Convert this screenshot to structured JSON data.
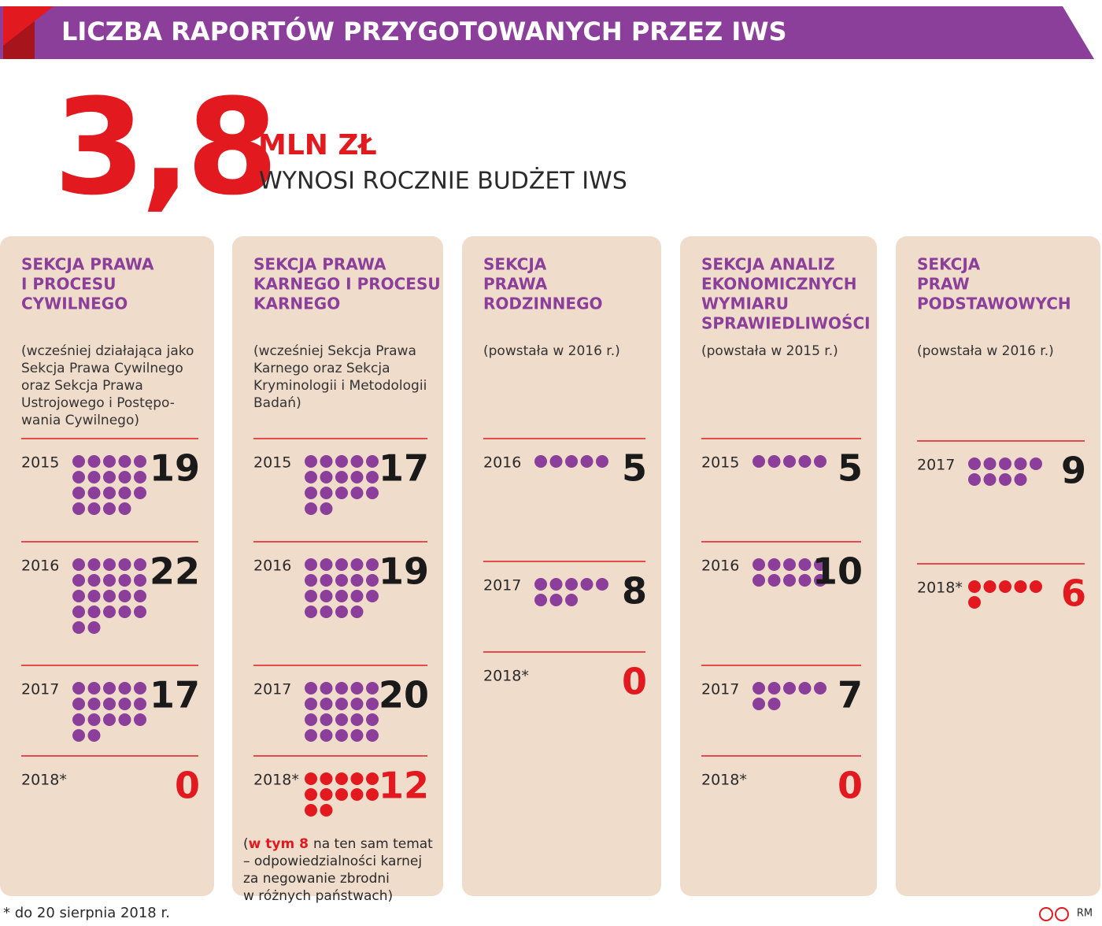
{
  "header": {
    "title": "LICZBA RAPORTÓW PRZYGOTOWANYCH PRZEZ IWS"
  },
  "headline": {
    "value": "3,8",
    "unit": "MLN ZŁ",
    "text": "WYNOSI ROCZNIE BUDŻET IWS"
  },
  "columns": [
    {
      "title": [
        "SEKCJA PRAWA",
        "I PROCESU",
        "CYWILNEGO"
      ],
      "note": [
        "(wcześniej działająca jako",
        "Sekcja Prawa Cywilnego",
        "oraz Sekcja Prawa",
        "Ustrojowego i Postępo-",
        "wania Cywilnego)"
      ],
      "entries": [
        {
          "year": "2015",
          "value": 19,
          "color": "#8b3f9a"
        },
        {
          "year": "2016",
          "value": 22,
          "color": "#8b3f9a"
        },
        {
          "year": "2017",
          "value": 17,
          "color": "#8b3f9a"
        },
        {
          "year": "2018*",
          "value": 0,
          "color": "#e2191f"
        }
      ]
    },
    {
      "title": [
        "SEKCJA PRAWA",
        "KARNEGO I PROCESU",
        "KARNEGO"
      ],
      "note": [
        "(wcześniej Sekcja Prawa",
        "Karnego oraz Sekcja",
        "Kryminologii i Metodologii",
        "Badań)"
      ],
      "entries": [
        {
          "year": "2015",
          "value": 17,
          "color": "#8b3f9a"
        },
        {
          "year": "2016",
          "value": 19,
          "color": "#8b3f9a"
        },
        {
          "year": "2017",
          "value": 20,
          "color": "#8b3f9a"
        },
        {
          "year": "2018*",
          "value": 12,
          "color": "#e2191f",
          "comment": {
            "lead": "(",
            "highlight": "w tym 8",
            "lines": [
              "na ten sam temat",
              "– odpowiedzialności karnej",
              "za negowanie zbrodni",
              "w różnych państwach)"
            ]
          }
        }
      ]
    },
    {
      "title": [
        "SEKCJA",
        "PRAWA",
        "RODZINNEGO"
      ],
      "note": [
        "(powstała w 2016 r.)"
      ],
      "entries": [
        {
          "year": "2016",
          "value": 5,
          "color": "#8b3f9a"
        },
        {
          "year": "2017",
          "value": 8,
          "color": "#8b3f9a"
        },
        {
          "year": "2018*",
          "value": 0,
          "color": "#e2191f"
        }
      ]
    },
    {
      "title": [
        "SEKCJA ANALIZ",
        "EKONOMICZNYCH",
        "WYMIARU",
        "SPRAWIEDLIWOŚCI"
      ],
      "note": [
        "(powstała w 2015 r.)"
      ],
      "entries": [
        {
          "year": "2015",
          "value": 5,
          "color": "#8b3f9a"
        },
        {
          "year": "2016",
          "value": 10,
          "color": "#8b3f9a"
        },
        {
          "year": "2017",
          "value": 7,
          "color": "#8b3f9a"
        },
        {
          "year": "2018*",
          "value": 0,
          "color": "#e2191f"
        }
      ]
    },
    {
      "title": [
        "SEKCJA",
        "PRAW",
        "PODSTAWOWYCH"
      ],
      "note": [
        "(powstała w 2016 r.)"
      ],
      "entries": [
        {
          "year": "2017",
          "value": 9,
          "color": "#8b3f9a"
        },
        {
          "year": "2018*",
          "value": 6,
          "color": "#e2191f"
        }
      ]
    }
  ],
  "footer": {
    "footnote": "* do 20 sierpnia 2018 r.",
    "credit": "RM"
  }
}
